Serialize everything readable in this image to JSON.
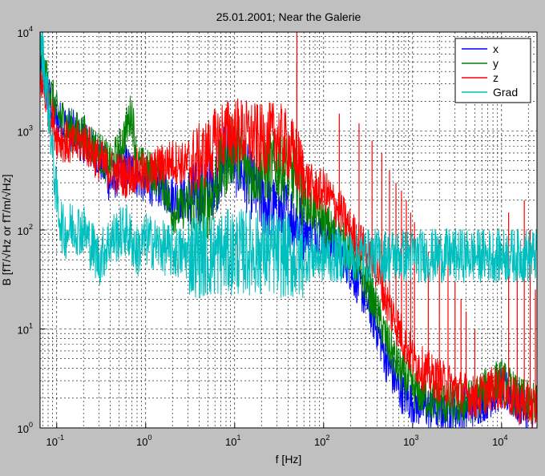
{
  "chart_data": {
    "type": "line",
    "title": "25.01.2001; Near the Galerie",
    "xlabel": "f [Hz]",
    "ylabel": "B [fT/√Hz or fT/m/√Hz]",
    "xscale": "log",
    "yscale": "log",
    "xlim": [
      0.065,
      25000
    ],
    "ylim": [
      1,
      10000
    ],
    "grid": true,
    "legend_position": "top-right",
    "background_color": "#c0c0c0",
    "plot_color": "#ffffff",
    "x_ticks": [
      {
        "value": 0.1,
        "base": "10",
        "exp": "-1"
      },
      {
        "value": 1,
        "base": "10",
        "exp": "0"
      },
      {
        "value": 10,
        "base": "10",
        "exp": "1"
      },
      {
        "value": 100,
        "base": "10",
        "exp": "2"
      },
      {
        "value": 1000,
        "base": "10",
        "exp": "3"
      },
      {
        "value": 10000,
        "base": "10",
        "exp": "4"
      }
    ],
    "y_ticks": [
      {
        "value": 1,
        "base": "10",
        "exp": "0"
      },
      {
        "value": 10,
        "base": "10",
        "exp": "1"
      },
      {
        "value": 100,
        "base": "10",
        "exp": "2"
      },
      {
        "value": 1000,
        "base": "10",
        "exp": "3"
      },
      {
        "value": 10000,
        "base": "10",
        "exp": "4"
      }
    ],
    "series": [
      {
        "name": "x",
        "color": "#0000ff",
        "noise_level": 0.45,
        "points": [
          [
            0.065,
            4000
          ],
          [
            0.1,
            1300
          ],
          [
            0.15,
            1000
          ],
          [
            0.2,
            800
          ],
          [
            0.3,
            550
          ],
          [
            0.4,
            300
          ],
          [
            0.6,
            450
          ],
          [
            0.8,
            350
          ],
          [
            1.0,
            300
          ],
          [
            1.5,
            280
          ],
          [
            2.0,
            220
          ],
          [
            3.0,
            200
          ],
          [
            5.0,
            260
          ],
          [
            7.0,
            400
          ],
          [
            8.0,
            700
          ],
          [
            10.0,
            500
          ],
          [
            15.0,
            300
          ],
          [
            20.0,
            200
          ],
          [
            30.0,
            150
          ],
          [
            40.0,
            150
          ],
          [
            50.0,
            120
          ],
          [
            60.0,
            100
          ],
          [
            80.0,
            95
          ],
          [
            100.0,
            90
          ],
          [
            150.0,
            65
          ],
          [
            200.0,
            40
          ],
          [
            300.0,
            20
          ],
          [
            400.0,
            10
          ],
          [
            500.0,
            5
          ],
          [
            700.0,
            2.5
          ],
          [
            1000.0,
            1.8
          ],
          [
            1500.0,
            1.6
          ],
          [
            2000.0,
            1.5
          ],
          [
            3000.0,
            1.5
          ],
          [
            5000.0,
            1.7
          ],
          [
            8000.0,
            2.2
          ],
          [
            10000.0,
            2.5
          ],
          [
            12000.0,
            2.2
          ],
          [
            15000.0,
            1.8
          ],
          [
            20000.0,
            1.6
          ],
          [
            25000.0,
            1.6
          ]
        ],
        "spikes": [
          [
            50,
            300
          ],
          [
            150,
            80
          ]
        ]
      },
      {
        "name": "y",
        "color": "#008000",
        "noise_level": 0.45,
        "points": [
          [
            0.065,
            5500
          ],
          [
            0.1,
            1500
          ],
          [
            0.15,
            1000
          ],
          [
            0.2,
            900
          ],
          [
            0.3,
            600
          ],
          [
            0.4,
            450
          ],
          [
            0.5,
            600
          ],
          [
            0.7,
            1600
          ],
          [
            0.8,
            450
          ],
          [
            1.0,
            400
          ],
          [
            1.5,
            350
          ],
          [
            2.0,
            150
          ],
          [
            3.0,
            180
          ],
          [
            5.0,
            180
          ],
          [
            7.0,
            400
          ],
          [
            10.0,
            700
          ],
          [
            15.0,
            400
          ],
          [
            20.0,
            400
          ],
          [
            30.0,
            450
          ],
          [
            40.0,
            400
          ],
          [
            50.0,
            300
          ],
          [
            60.0,
            200
          ],
          [
            80.0,
            150
          ],
          [
            100.0,
            120
          ],
          [
            150.0,
            80
          ],
          [
            200.0,
            60
          ],
          [
            300.0,
            30
          ],
          [
            400.0,
            15
          ],
          [
            500.0,
            8
          ],
          [
            700.0,
            4
          ],
          [
            1000.0,
            2.5
          ],
          [
            1500.0,
            2.0
          ],
          [
            2000.0,
            1.8
          ],
          [
            3000.0,
            1.7
          ],
          [
            5000.0,
            1.9
          ],
          [
            8000.0,
            2.8
          ],
          [
            10000.0,
            3.0
          ],
          [
            12000.0,
            2.6
          ],
          [
            15000.0,
            2.0
          ],
          [
            20000.0,
            1.8
          ],
          [
            25000.0,
            1.7
          ]
        ],
        "spikes": [
          [
            50,
            5000
          ],
          [
            150,
            120
          ],
          [
            250,
            60
          ]
        ]
      },
      {
        "name": "z",
        "color": "#ff0000",
        "noise_level": 0.45,
        "points": [
          [
            0.065,
            3500
          ],
          [
            0.1,
            900
          ],
          [
            0.15,
            700
          ],
          [
            0.2,
            800
          ],
          [
            0.3,
            500
          ],
          [
            0.4,
            400
          ],
          [
            0.6,
            350
          ],
          [
            0.8,
            400
          ],
          [
            1.0,
            350
          ],
          [
            1.5,
            450
          ],
          [
            2.0,
            500
          ],
          [
            3.0,
            450
          ],
          [
            5.0,
            600
          ],
          [
            7.0,
            900
          ],
          [
            10.0,
            1000
          ],
          [
            15.0,
            900
          ],
          [
            20.0,
            800
          ],
          [
            30.0,
            900
          ],
          [
            40.0,
            700
          ],
          [
            50.0,
            500
          ],
          [
            60.0,
            350
          ],
          [
            80.0,
            250
          ],
          [
            100.0,
            250
          ],
          [
            150.0,
            160
          ],
          [
            200.0,
            100
          ],
          [
            300.0,
            60
          ],
          [
            400.0,
            40
          ],
          [
            500.0,
            20
          ],
          [
            700.0,
            10
          ],
          [
            1000.0,
            5
          ],
          [
            1500.0,
            3.5
          ],
          [
            2000.0,
            3.0
          ],
          [
            3000.0,
            2.5
          ],
          [
            5000.0,
            2.0
          ],
          [
            8000.0,
            2.5
          ],
          [
            10000.0,
            2.6
          ],
          [
            12000.0,
            2.2
          ],
          [
            15000.0,
            1.8
          ],
          [
            20000.0,
            1.7
          ],
          [
            25000.0,
            1.6
          ]
        ],
        "spikes": [
          [
            50,
            10000
          ],
          [
            150,
            1500
          ],
          [
            250,
            1200
          ],
          [
            350,
            800
          ],
          [
            450,
            600
          ],
          [
            550,
            400
          ],
          [
            650,
            300
          ],
          [
            750,
            250
          ],
          [
            850,
            200
          ],
          [
            950,
            150
          ],
          [
            1050,
            120
          ],
          [
            1500,
            60
          ],
          [
            2000,
            80
          ],
          [
            2500,
            60
          ],
          [
            3000,
            30
          ],
          [
            3500,
            20
          ],
          [
            4000,
            15
          ],
          [
            5000,
            10
          ],
          [
            12000,
            150
          ],
          [
            15000,
            40
          ],
          [
            18000,
            200
          ],
          [
            21000,
            100
          ],
          [
            24000,
            25
          ]
        ]
      },
      {
        "name": "Grad",
        "color": "#00bfbf",
        "noise_level": 0.55,
        "points": [
          [
            0.065,
            10000
          ],
          [
            0.08,
            2000
          ],
          [
            0.1,
            200
          ],
          [
            0.12,
            90
          ],
          [
            0.15,
            110
          ],
          [
            0.2,
            100
          ],
          [
            0.3,
            50
          ],
          [
            0.4,
            80
          ],
          [
            0.5,
            90
          ],
          [
            0.6,
            100
          ],
          [
            0.8,
            60
          ],
          [
            1.0,
            80
          ],
          [
            2.0,
            60
          ],
          [
            5.0,
            55
          ],
          [
            10.0,
            60
          ],
          [
            20.0,
            60
          ],
          [
            40.0,
            55
          ],
          [
            50.0,
            50
          ],
          [
            60.0,
            55
          ],
          [
            100.0,
            55
          ],
          [
            300.0,
            55
          ],
          [
            1000.0,
            55
          ],
          [
            5000.0,
            55
          ],
          [
            25000.0,
            55
          ]
        ],
        "spikes": []
      }
    ]
  }
}
